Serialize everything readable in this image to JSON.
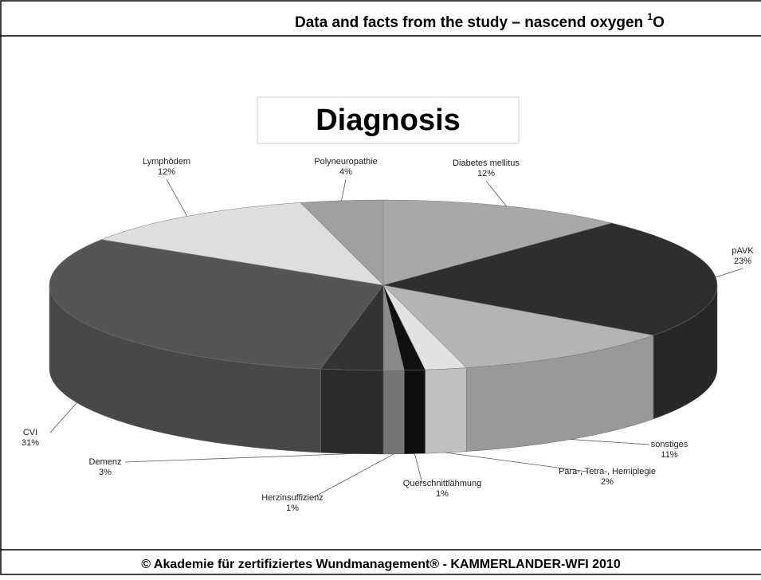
{
  "header": {
    "main": "Data and facts from the study – nascend oxygen ",
    "sup": "1",
    "end": "O"
  },
  "footer": "© Akademie für zertifiziertes Wundmanagement® - KAMMERLANDER-WFI   2010",
  "chart_data": {
    "type": "pie",
    "title": "Diagnosis",
    "categories": [
      "Diabetes mellitus",
      "pAVK",
      "sonstiges",
      "Para-, Tetra-,  Hemiplegie",
      "Querschnittlähmung",
      "Herzinsuffizienz",
      "Demenz",
      "CVI",
      "Lymphödem",
      "Polyneuropathie"
    ],
    "values": [
      12,
      23,
      11,
      2,
      1,
      1,
      3,
      31,
      12,
      4
    ],
    "value_labels": [
      "12%",
      "23%",
      "11%",
      "2%",
      "1%",
      "1%",
      "3%",
      "31%",
      "12%",
      "4%"
    ],
    "colors": [
      "#a8a8a8",
      "#2e2e2e",
      "#b4b4b4",
      "#e2e2e2",
      "#111111",
      "#8a8a8a",
      "#333333",
      "#555555",
      "#dedede",
      "#a0a0a0"
    ]
  }
}
